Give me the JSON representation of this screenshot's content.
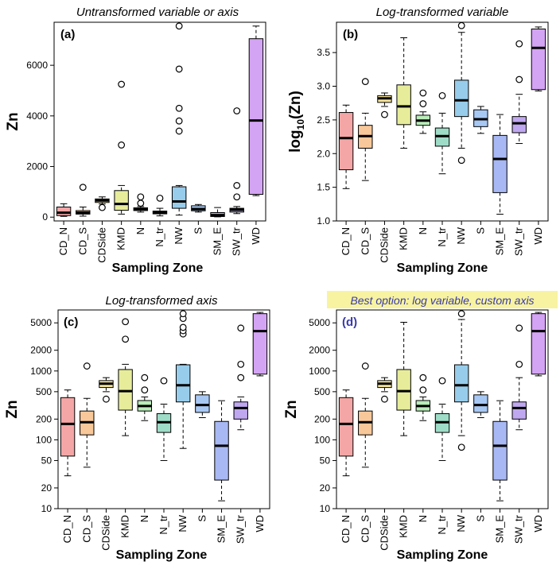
{
  "figure": {
    "zones": [
      "CD_N",
      "CD_S",
      "CDSide",
      "KMD",
      "N",
      "N_tr",
      "NW",
      "S",
      "SM_E",
      "SW_tr",
      "WD"
    ],
    "zone_colors": [
      "#f4a6a6",
      "#f9c89a",
      "#f6e49a",
      "#e6ec9a",
      "#b9ecb9",
      "#9fdcc8",
      "#98cceb",
      "#a8c8f4",
      "#a8b8f4",
      "#c0a8f0",
      "#d4a4f4"
    ],
    "box_stroke": "#000000",
    "highlight_bg": "#f7f3a0",
    "highlight_text": "#3a3aa8",
    "xlabel": "Sampling Zone"
  },
  "chart_data": [
    {
      "type": "box",
      "panel": "a",
      "panel_label": "(a)",
      "title": "Untransformed variable or axis",
      "ylabel": "Zn",
      "xlabel": "Sampling Zone",
      "yscale": "linear",
      "ylim": [
        -150,
        7700
      ],
      "yticks": [
        0,
        2000,
        4000,
        6000
      ],
      "ytick_labels": [
        "0",
        "2000",
        "4000",
        "6000"
      ],
      "categories": [
        "CD_N",
        "CD_S",
        "CDSide",
        "KMD",
        "N",
        "N_tr",
        "NW",
        "S",
        "SM_E",
        "SW_tr",
        "WD"
      ],
      "boxes": [
        {
          "min": 30,
          "q1": 60,
          "median": 175,
          "q3": 400,
          "max": 530,
          "outliers": []
        },
        {
          "min": 40,
          "q1": 120,
          "median": 180,
          "q3": 260,
          "max": 400,
          "outliers": [
            1180
          ]
        },
        {
          "min": 520,
          "q1": 580,
          "median": 660,
          "q3": 720,
          "max": 800,
          "outliers": [
            380
          ]
        },
        {
          "min": 120,
          "q1": 270,
          "median": 520,
          "q3": 1050,
          "max": 1250,
          "outliers": [
            2850,
            5250
          ]
        },
        {
          "min": 200,
          "q1": 260,
          "median": 310,
          "q3": 370,
          "max": 420,
          "outliers": [
            550,
            800
          ]
        },
        {
          "min": 50,
          "q1": 130,
          "median": 180,
          "q3": 240,
          "max": 350,
          "outliers": [
            750
          ]
        },
        {
          "min": 80,
          "q1": 350,
          "median": 620,
          "q3": 1200,
          "max": 1250,
          "outliers": [
            3400,
            3800,
            4300,
            5850,
            7550
          ]
        },
        {
          "min": 200,
          "q1": 250,
          "median": 320,
          "q3": 450,
          "max": 500,
          "outliers": []
        },
        {
          "min": 12,
          "q1": 25,
          "median": 80,
          "q3": 180,
          "max": 380,
          "outliers": []
        },
        {
          "min": 140,
          "q1": 200,
          "median": 290,
          "q3": 350,
          "max": 420,
          "outliers": [
            800,
            1250,
            4200
          ]
        },
        {
          "min": 850,
          "q1": 900,
          "median": 3820,
          "q3": 7050,
          "max": 7550,
          "outliers": []
        }
      ]
    },
    {
      "type": "box",
      "panel": "b",
      "panel_label": "(b)",
      "title": "Log-transformed variable",
      "ylabel_main": "log",
      "ylabel_sub": "10",
      "ylabel_rest": "(Zn)",
      "xlabel": "Sampling Zone",
      "yscale": "linear",
      "ylim": [
        1.0,
        3.95
      ],
      "yticks": [
        1.0,
        1.5,
        2.0,
        2.5,
        3.0,
        3.5
      ],
      "ytick_labels": [
        "1.0",
        "1.5",
        "2.0",
        "2.5",
        "3.0",
        "3.5"
      ],
      "categories": [
        "CD_N",
        "CD_S",
        "CDSide",
        "KMD",
        "N",
        "N_tr",
        "NW",
        "S",
        "SM_E",
        "SW_tr",
        "WD"
      ],
      "boxes": [
        {
          "min": 1.48,
          "q1": 1.76,
          "median": 2.23,
          "q3": 2.61,
          "max": 2.72,
          "outliers": []
        },
        {
          "min": 1.6,
          "q1": 2.08,
          "median": 2.26,
          "q3": 2.42,
          "max": 2.6,
          "outliers": [
            3.07
          ]
        },
        {
          "min": 2.7,
          "q1": 2.76,
          "median": 2.82,
          "q3": 2.86,
          "max": 2.9,
          "outliers": [
            2.58
          ]
        },
        {
          "min": 2.08,
          "q1": 2.43,
          "median": 2.7,
          "q3": 3.02,
          "max": 3.72,
          "outliers": []
        },
        {
          "min": 2.3,
          "q1": 2.42,
          "median": 2.49,
          "q3": 2.57,
          "max": 2.62,
          "outliers": [
            2.74,
            2.9
          ]
        },
        {
          "min": 1.7,
          "q1": 2.11,
          "median": 2.26,
          "q3": 2.38,
          "max": 2.6,
          "outliers": [
            2.86
          ]
        },
        {
          "min": 2.08,
          "q1": 2.55,
          "median": 2.79,
          "q3": 3.09,
          "max": 3.8,
          "outliers": [
            1.9,
            3.9
          ]
        },
        {
          "min": 2.3,
          "q1": 2.4,
          "median": 2.51,
          "q3": 2.65,
          "max": 2.7,
          "outliers": []
        },
        {
          "min": 1.1,
          "q1": 1.42,
          "median": 1.92,
          "q3": 2.27,
          "max": 2.58,
          "outliers": []
        },
        {
          "min": 2.15,
          "q1": 2.31,
          "median": 2.45,
          "q3": 2.55,
          "max": 2.88,
          "outliers": [
            3.1,
            3.63
          ]
        },
        {
          "min": 2.93,
          "q1": 2.95,
          "median": 3.57,
          "q3": 3.85,
          "max": 3.88,
          "outliers": []
        }
      ]
    },
    {
      "type": "box",
      "panel": "c",
      "panel_label": "(c)",
      "title": "Log-transformed axis",
      "ylabel": "Zn",
      "xlabel": "Sampling Zone",
      "yscale": "log",
      "ylim": [
        10,
        7700
      ],
      "yticks": [
        10,
        20,
        50,
        100,
        200,
        500,
        1000,
        2000,
        5000
      ],
      "ytick_labels": [
        "10",
        "20",
        "50",
        "100",
        "200",
        "500",
        "1000",
        "2000",
        "5000"
      ],
      "categories": [
        "CD_N",
        "CD_S",
        "CDSide",
        "KMD",
        "N",
        "N_tr",
        "NW",
        "S",
        "SM_E",
        "SW_tr",
        "WD"
      ],
      "boxes": [
        {
          "min": 30,
          "q1": 58,
          "median": 170,
          "q3": 410,
          "max": 530,
          "outliers": []
        },
        {
          "min": 40,
          "q1": 118,
          "median": 180,
          "q3": 262,
          "max": 400,
          "outliers": [
            1180
          ]
        },
        {
          "min": 500,
          "q1": 575,
          "median": 655,
          "q3": 725,
          "max": 800,
          "outliers": [
            390
          ]
        },
        {
          "min": 115,
          "q1": 270,
          "median": 510,
          "q3": 1050,
          "max": 1250,
          "outliers": [
            2900,
            5200
          ]
        },
        {
          "min": 190,
          "q1": 262,
          "median": 310,
          "q3": 372,
          "max": 420,
          "outliers": [
            530,
            800
          ]
        },
        {
          "min": 50,
          "q1": 128,
          "median": 180,
          "q3": 240,
          "max": 330,
          "outliers": [
            720
          ]
        },
        {
          "min": 75,
          "q1": 355,
          "median": 620,
          "q3": 1230,
          "max": 1250,
          "outliers": [
            3450,
            3850,
            4300,
            5800,
            6800
          ]
        },
        {
          "min": 210,
          "q1": 250,
          "median": 320,
          "q3": 450,
          "max": 500,
          "outliers": []
        },
        {
          "min": 13,
          "q1": 26,
          "median": 82,
          "q3": 185,
          "max": 370,
          "outliers": []
        },
        {
          "min": 140,
          "q1": 200,
          "median": 290,
          "q3": 355,
          "max": 420,
          "outliers": [
            800,
            1250,
            4200
          ]
        },
        {
          "min": 850,
          "q1": 900,
          "median": 3800,
          "q3": 6800,
          "max": 7100,
          "outliers": []
        }
      ]
    },
    {
      "type": "box",
      "panel": "d",
      "panel_label": "(d)",
      "title": "Best option: log variable, custom axis",
      "title_highlight": true,
      "ylabel": "Zn",
      "xlabel": "Sampling Zone",
      "yscale": "log",
      "ylim": [
        10,
        7700
      ],
      "yticks": [
        10,
        20,
        50,
        100,
        200,
        500,
        1000,
        2000,
        5000
      ],
      "ytick_labels": [
        "10",
        "20",
        "50",
        "100",
        "200",
        "500",
        "1000",
        "2000",
        "5000"
      ],
      "categories": [
        "CD_N",
        "CD_S",
        "CDSide",
        "KMD",
        "N",
        "N_tr",
        "NW",
        "S",
        "SM_E",
        "SW_tr",
        "WD"
      ],
      "boxes": [
        {
          "min": 30,
          "q1": 58,
          "median": 170,
          "q3": 410,
          "max": 530,
          "outliers": []
        },
        {
          "min": 40,
          "q1": 118,
          "median": 180,
          "q3": 262,
          "max": 400,
          "outliers": [
            1180
          ]
        },
        {
          "min": 500,
          "q1": 575,
          "median": 655,
          "q3": 725,
          "max": 800,
          "outliers": [
            390
          ]
        },
        {
          "min": 115,
          "q1": 270,
          "median": 510,
          "q3": 1050,
          "max": 5100,
          "outliers": []
        },
        {
          "min": 190,
          "q1": 262,
          "median": 310,
          "q3": 372,
          "max": 420,
          "outliers": [
            530,
            800
          ]
        },
        {
          "min": 50,
          "q1": 128,
          "median": 180,
          "q3": 240,
          "max": 330,
          "outliers": [
            720
          ]
        },
        {
          "min": 115,
          "q1": 355,
          "median": 620,
          "q3": 1230,
          "max": 5600,
          "outliers": [
            78,
            6800
          ]
        },
        {
          "min": 210,
          "q1": 250,
          "median": 320,
          "q3": 450,
          "max": 500,
          "outliers": []
        },
        {
          "min": 13,
          "q1": 26,
          "median": 82,
          "q3": 185,
          "max": 370,
          "outliers": []
        },
        {
          "min": 140,
          "q1": 200,
          "median": 290,
          "q3": 355,
          "max": 800,
          "outliers": [
            1250,
            4200
          ]
        },
        {
          "min": 850,
          "q1": 900,
          "median": 3800,
          "q3": 6800,
          "max": 7100,
          "outliers": []
        }
      ]
    }
  ]
}
